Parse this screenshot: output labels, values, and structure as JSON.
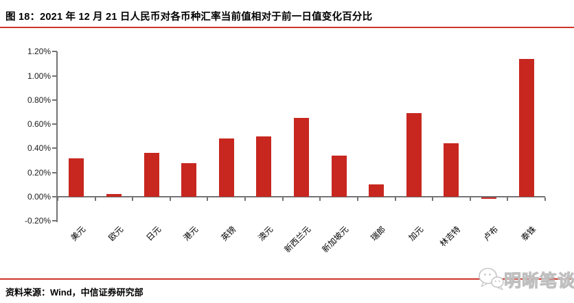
{
  "header": {
    "title": "图 18：2021 年 12 月 21 日人民币对各币种汇率当前值相对于前一日值变化百分比"
  },
  "footer": {
    "source": "资料来源：Wind，中信证券研究部"
  },
  "watermark": {
    "label": "明晰笔谈",
    "icon": "chat-bubbles-icon"
  },
  "colors": {
    "bar": "#c7271f",
    "rule": "#cd3229",
    "axis": "#737373",
    "tick_label": "#1a1a1a",
    "watermark": "#c8c8c8"
  },
  "chart_data": {
    "type": "bar",
    "title": "图 18：2021 年 12 月 21 日人民币对各币种汇率当前值相对于前一日值变化百分比",
    "categories": [
      "美元",
      "欧元",
      "日元",
      "港元",
      "英镑",
      "澳元",
      "新西兰元",
      "新加坡元",
      "瑞郎",
      "加元",
      "林吉特",
      "卢布",
      "泰铢"
    ],
    "values": [
      0.32,
      0.02,
      0.36,
      0.28,
      0.48,
      0.5,
      0.65,
      0.34,
      0.1,
      0.69,
      0.44,
      -0.01,
      1.14
    ],
    "unit": "%",
    "xlabel": "",
    "ylabel": "",
    "ylim": [
      -0.2,
      1.2
    ],
    "ytick_step": 0.2,
    "ytick_labels": [
      "1.20%",
      "1.00%",
      "0.80%",
      "0.60%",
      "0.40%",
      "0.20%",
      "0.00%",
      "-0.20%"
    ],
    "grid": false,
    "legend_position": "none",
    "bar_color": "#c7271f",
    "x_label_rotation_deg": 45
  }
}
